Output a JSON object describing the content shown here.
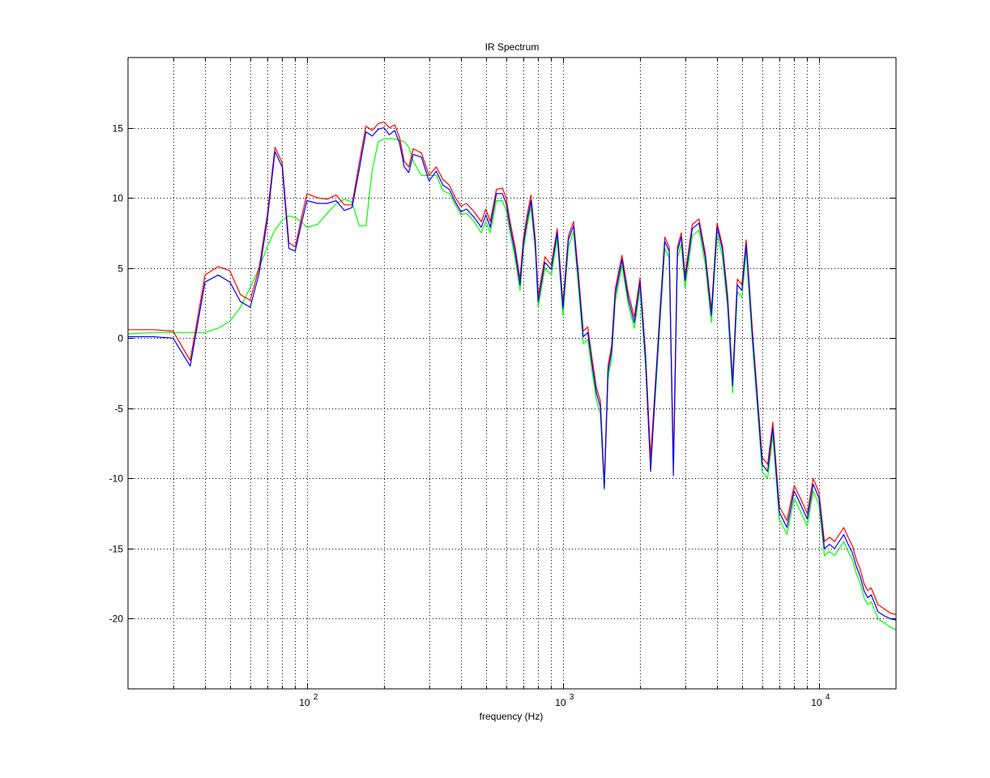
{
  "chart_data": {
    "type": "line",
    "title": "IR Spectrum",
    "xlabel": "frequency (Hz)",
    "ylabel": "",
    "xscale": "log",
    "xlim": [
      20,
      20000
    ],
    "ylim": [
      -25,
      20
    ],
    "grid": true,
    "legend": "none",
    "xticks": [
      {
        "value": 100,
        "base": "10",
        "exp": "2"
      },
      {
        "value": 1000,
        "base": "10",
        "exp": "3"
      },
      {
        "value": 10000,
        "base": "10",
        "exp": "4"
      }
    ],
    "yticks": [
      {
        "value": 15,
        "label": "15"
      },
      {
        "value": 10,
        "label": "10"
      },
      {
        "value": 5,
        "label": "5"
      },
      {
        "value": 0,
        "label": "0"
      },
      {
        "value": -5,
        "label": "-5"
      },
      {
        "value": -10,
        "label": "-10"
      },
      {
        "value": -15,
        "label": "-15"
      },
      {
        "value": -20,
        "label": "-20"
      }
    ],
    "series": [
      {
        "color": "#ff0000",
        "x": [
          20,
          25,
          30,
          35,
          40,
          45,
          50,
          55,
          60,
          65,
          70,
          75,
          80,
          85,
          90,
          95,
          100,
          110,
          120,
          130,
          140,
          150,
          160,
          170,
          180,
          190,
          200,
          210,
          220,
          230,
          240,
          250,
          260,
          280,
          300,
          320,
          340,
          360,
          380,
          400,
          420,
          450,
          480,
          500,
          520,
          550,
          580,
          600,
          620,
          650,
          680,
          700,
          720,
          750,
          780,
          800,
          850,
          900,
          950,
          1000,
          1050,
          1100,
          1150,
          1200,
          1250,
          1300,
          1350,
          1400,
          1450,
          1500,
          1550,
          1600,
          1700,
          1800,
          1900,
          2000,
          2100,
          2200,
          2300,
          2400,
          2500,
          2600,
          2700,
          2800,
          2900,
          3000,
          3200,
          3400,
          3600,
          3800,
          4000,
          4200,
          4400,
          4600,
          4800,
          5000,
          5200,
          5500,
          5800,
          6000,
          6300,
          6600,
          7000,
          7500,
          8000,
          8500,
          9000,
          9500,
          10000,
          10500,
          11000,
          11500,
          12000,
          12500,
          13000,
          13500,
          14000,
          14500,
          15000,
          15500,
          16000,
          17000,
          18000,
          19000,
          20000
        ],
        "y": [
          0.6,
          0.6,
          0.5,
          -1.6,
          4.5,
          5.1,
          4.8,
          3.1,
          2.7,
          5.0,
          8.8,
          13.6,
          12.5,
          6.8,
          6.5,
          8.5,
          10.3,
          10.0,
          9.9,
          10.2,
          9.5,
          9.5,
          12.5,
          15.1,
          14.8,
          15.3,
          15.4,
          15.0,
          15.2,
          14.3,
          12.6,
          12.2,
          13.5,
          13.2,
          11.6,
          12.2,
          11.3,
          10.9,
          10.0,
          9.4,
          9.6,
          9.0,
          8.3,
          9.2,
          8.3,
          10.6,
          10.7,
          10.0,
          8.4,
          6.5,
          4.2,
          7.0,
          8.5,
          10.2,
          7.0,
          3.0,
          5.8,
          5.2,
          7.8,
          2.5,
          7.3,
          8.3,
          4.5,
          0.5,
          0.8,
          -1.5,
          -3.5,
          -4.5,
          -10.4,
          -2.0,
          -0.5,
          3.5,
          5.9,
          3.2,
          1.5,
          4.3,
          -1.0,
          -8.5,
          -3.0,
          2.3,
          7.2,
          6.5,
          -9.0,
          6.5,
          7.5,
          4.5,
          8.1,
          8.5,
          6.0,
          2.0,
          8.2,
          6.6,
          3.0,
          -3.0,
          4.2,
          3.8,
          7.0,
          0.5,
          -5.0,
          -8.5,
          -9.0,
          -6.0,
          -12.0,
          -13.0,
          -10.5,
          -11.5,
          -12.5,
          -10.0,
          -11.0,
          -14.5,
          -14.2,
          -14.5,
          -14.0,
          -13.5,
          -14.2,
          -14.8,
          -15.8,
          -16.5,
          -17.5,
          -18.0,
          -17.8,
          -19.0,
          -19.3,
          -19.6,
          -19.7
        ]
      },
      {
        "color": "#0000ff",
        "x": [
          20,
          25,
          30,
          35,
          40,
          45,
          50,
          55,
          60,
          65,
          70,
          75,
          80,
          85,
          90,
          95,
          100,
          110,
          120,
          130,
          140,
          150,
          160,
          170,
          180,
          190,
          200,
          210,
          220,
          230,
          240,
          250,
          260,
          280,
          300,
          320,
          340,
          360,
          380,
          400,
          420,
          450,
          480,
          500,
          520,
          550,
          580,
          600,
          620,
          650,
          680,
          700,
          720,
          750,
          780,
          800,
          850,
          900,
          950,
          1000,
          1050,
          1100,
          1150,
          1200,
          1250,
          1300,
          1350,
          1400,
          1450,
          1500,
          1550,
          1600,
          1700,
          1800,
          1900,
          2000,
          2100,
          2200,
          2300,
          2400,
          2500,
          2600,
          2700,
          2800,
          2900,
          3000,
          3200,
          3400,
          3600,
          3800,
          4000,
          4200,
          4400,
          4600,
          4800,
          5000,
          5200,
          5500,
          5800,
          6000,
          6300,
          6600,
          7000,
          7500,
          8000,
          8500,
          9000,
          9500,
          10000,
          10500,
          11000,
          11500,
          12000,
          12500,
          13000,
          13500,
          14000,
          14500,
          15000,
          15500,
          16000,
          17000,
          18000,
          19000,
          20000
        ],
        "y": [
          0.1,
          0.1,
          0.0,
          -2.0,
          4.0,
          4.5,
          4.0,
          2.6,
          2.2,
          4.6,
          8.4,
          13.3,
          12.2,
          6.4,
          6.2,
          8.1,
          9.8,
          9.6,
          9.6,
          9.8,
          9.1,
          9.3,
          12.0,
          14.7,
          14.4,
          14.9,
          15.0,
          14.5,
          14.8,
          13.9,
          12.2,
          11.8,
          13.1,
          12.9,
          11.2,
          11.9,
          10.9,
          10.6,
          9.7,
          9.0,
          9.2,
          8.6,
          7.9,
          8.8,
          7.9,
          10.3,
          10.3,
          9.6,
          8.0,
          6.1,
          3.8,
          6.6,
          8.1,
          9.8,
          6.6,
          2.6,
          5.4,
          4.9,
          7.5,
          2.1,
          7.0,
          8.0,
          4.1,
          0.1,
          0.4,
          -1.9,
          -3.9,
          -4.9,
          -10.7,
          -2.4,
          -0.9,
          3.1,
          5.6,
          2.8,
          1.1,
          4.0,
          -1.4,
          -9.5,
          -3.4,
          1.9,
          6.9,
          6.2,
          -9.8,
          6.2,
          7.2,
          4.1,
          7.8,
          8.2,
          5.7,
          1.6,
          7.9,
          6.3,
          2.6,
          -3.4,
          3.8,
          3.4,
          6.7,
          0.1,
          -5.4,
          -9.0,
          -9.5,
          -6.4,
          -12.4,
          -13.5,
          -10.9,
          -11.9,
          -12.9,
          -10.4,
          -11.4,
          -15.0,
          -14.7,
          -15.0,
          -14.5,
          -14.0,
          -14.7,
          -15.3,
          -16.3,
          -17.0,
          -18.0,
          -18.5,
          -18.3,
          -19.5,
          -19.8,
          -20.0,
          -20.1
        ]
      },
      {
        "color": "#00ff00",
        "x": [
          20,
          25,
          30,
          35,
          40,
          45,
          50,
          55,
          60,
          65,
          70,
          75,
          80,
          85,
          90,
          95,
          100,
          110,
          120,
          130,
          140,
          150,
          160,
          170,
          180,
          190,
          200,
          210,
          220,
          230,
          240,
          250,
          260,
          280,
          300,
          320,
          340,
          360,
          380,
          400,
          420,
          450,
          480,
          500,
          520,
          550,
          580,
          600,
          620,
          650,
          680,
          700,
          720,
          750,
          780,
          800,
          850,
          900,
          950,
          1000,
          1050,
          1100,
          1150,
          1200,
          1250,
          1300,
          1350,
          1400,
          1450,
          1500,
          1550,
          1600,
          1700,
          1800,
          1900,
          2000,
          2100,
          2200,
          2300,
          2400,
          2500,
          2600,
          2700,
          2800,
          2900,
          3000,
          3200,
          3400,
          3600,
          3800,
          4000,
          4200,
          4400,
          4600,
          4800,
          5000,
          5200,
          5500,
          5800,
          6000,
          6300,
          6600,
          7000,
          7500,
          8000,
          8500,
          9000,
          9500,
          10000,
          10500,
          11000,
          11500,
          12000,
          12500,
          13000,
          13500,
          14000,
          14500,
          15000,
          15500,
          16000,
          17000,
          18000,
          19000,
          20000
        ],
        "y": [
          0.3,
          0.4,
          0.4,
          0.4,
          0.4,
          0.7,
          1.2,
          2.2,
          3.6,
          5.0,
          6.5,
          7.7,
          8.4,
          8.7,
          8.6,
          8.3,
          7.9,
          8.1,
          8.9,
          9.6,
          9.9,
          9.7,
          8.0,
          8.0,
          12.0,
          14.0,
          14.2,
          14.2,
          14.2,
          14.1,
          14.0,
          13.6,
          12.6,
          11.6,
          11.6,
          11.6,
          10.5,
          10.3,
          9.5,
          8.8,
          8.9,
          8.3,
          7.5,
          8.3,
          7.5,
          9.8,
          9.8,
          9.1,
          7.6,
          5.7,
          3.4,
          6.2,
          7.7,
          9.4,
          6.2,
          2.2,
          5.0,
          4.5,
          7.1,
          1.6,
          6.5,
          7.6,
          3.6,
          -0.4,
          -0.1,
          -2.4,
          -4.4,
          -5.4,
          -10.8,
          -2.9,
          -1.4,
          2.6,
          5.2,
          2.4,
          0.7,
          3.5,
          -1.9,
          -9.0,
          -3.9,
          1.4,
          6.4,
          5.7,
          -9.3,
          5.7,
          6.7,
          3.6,
          7.3,
          7.7,
          5.2,
          1.1,
          7.4,
          5.8,
          2.1,
          -3.9,
          3.3,
          2.9,
          6.2,
          -0.4,
          -5.9,
          -9.5,
          -10.0,
          -6.9,
          -12.9,
          -14.0,
          -11.4,
          -12.4,
          -13.4,
          -10.9,
          -11.9,
          -15.5,
          -15.2,
          -15.5,
          -15.0,
          -14.5,
          -15.2,
          -15.8,
          -16.8,
          -17.5,
          -18.5,
          -19.0,
          -18.8,
          -20.0,
          -20.3,
          -20.6,
          -20.8
        ]
      }
    ]
  }
}
